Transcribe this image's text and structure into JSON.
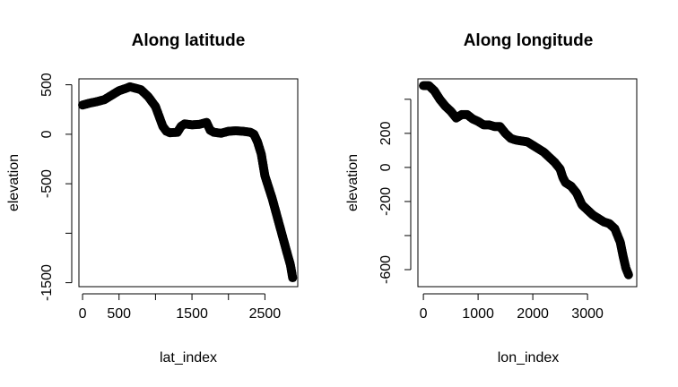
{
  "chart_data": [
    {
      "type": "scatter",
      "title": "Along latitude",
      "xlabel": "lat_index",
      "ylabel": "elevation",
      "xlim": [
        -50,
        2950
      ],
      "ylim": [
        -1540,
        560
      ],
      "xticks": [
        0,
        500,
        1000,
        1500,
        2000,
        2500
      ],
      "xtick_labels": [
        "0",
        "500",
        "",
        "1500",
        "",
        "2500"
      ],
      "yticks": [
        500,
        0,
        -500,
        -1000,
        -1500
      ],
      "ytick_labels": [
        "500",
        "0",
        "-500",
        "",
        "-1500"
      ],
      "points": [
        [
          0,
          295
        ],
        [
          100,
          315
        ],
        [
          200,
          330
        ],
        [
          300,
          350
        ],
        [
          400,
          395
        ],
        [
          500,
          440
        ],
        [
          600,
          465
        ],
        [
          650,
          480
        ],
        [
          700,
          470
        ],
        [
          800,
          450
        ],
        [
          900,
          380
        ],
        [
          1000,
          280
        ],
        [
          1100,
          80
        ],
        [
          1150,
          30
        ],
        [
          1200,
          15
        ],
        [
          1300,
          20
        ],
        [
          1350,
          80
        ],
        [
          1400,
          105
        ],
        [
          1500,
          95
        ],
        [
          1600,
          100
        ],
        [
          1700,
          120
        ],
        [
          1750,
          40
        ],
        [
          1800,
          20
        ],
        [
          1900,
          10
        ],
        [
          2000,
          30
        ],
        [
          2100,
          35
        ],
        [
          2200,
          30
        ],
        [
          2300,
          20
        ],
        [
          2350,
          0
        ],
        [
          2400,
          -80
        ],
        [
          2450,
          -200
        ],
        [
          2500,
          -420
        ],
        [
          2600,
          -650
        ],
        [
          2700,
          -920
        ],
        [
          2800,
          -1190
        ],
        [
          2850,
          -1320
        ],
        [
          2880,
          -1450
        ]
      ]
    },
    {
      "type": "scatter",
      "title": "Along longitude",
      "xlabel": "lon_index",
      "ylabel": "elevation",
      "xlim": [
        -100,
        3900
      ],
      "ylim": [
        -700,
        520
      ],
      "xticks": [
        0,
        1000,
        2000,
        3000
      ],
      "xtick_labels": [
        "0",
        "1000",
        "2000",
        "3000"
      ],
      "yticks": [
        -600,
        -400,
        -200,
        0,
        200,
        400
      ],
      "ytick_labels": [
        "-600",
        "",
        "-200",
        "0",
        "200",
        ""
      ],
      "points": [
        [
          0,
          480
        ],
        [
          100,
          480
        ],
        [
          200,
          450
        ],
        [
          300,
          400
        ],
        [
          400,
          360
        ],
        [
          500,
          330
        ],
        [
          600,
          290
        ],
        [
          700,
          310
        ],
        [
          800,
          310
        ],
        [
          900,
          285
        ],
        [
          1000,
          270
        ],
        [
          1100,
          250
        ],
        [
          1200,
          250
        ],
        [
          1300,
          240
        ],
        [
          1400,
          240
        ],
        [
          1500,
          200
        ],
        [
          1600,
          170
        ],
        [
          1700,
          160
        ],
        [
          1800,
          155
        ],
        [
          1900,
          150
        ],
        [
          2000,
          130
        ],
        [
          2100,
          110
        ],
        [
          2200,
          90
        ],
        [
          2300,
          60
        ],
        [
          2400,
          30
        ],
        [
          2500,
          -10
        ],
        [
          2550,
          -60
        ],
        [
          2600,
          -90
        ],
        [
          2700,
          -110
        ],
        [
          2800,
          -150
        ],
        [
          2900,
          -220
        ],
        [
          3000,
          -250
        ],
        [
          3100,
          -280
        ],
        [
          3200,
          -300
        ],
        [
          3300,
          -320
        ],
        [
          3400,
          -330
        ],
        [
          3500,
          -360
        ],
        [
          3600,
          -440
        ],
        [
          3650,
          -520
        ],
        [
          3700,
          -590
        ],
        [
          3750,
          -630
        ]
      ]
    }
  ]
}
